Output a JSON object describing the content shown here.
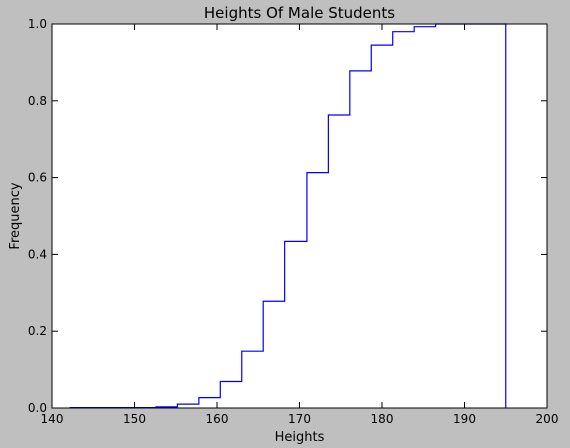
{
  "chart_data": {
    "type": "step",
    "title": "Heights Of Male Students",
    "xlabel": "Heights",
    "ylabel": "Frequency",
    "xlim": [
      140,
      200
    ],
    "ylim": [
      0,
      1.0
    ],
    "grid": false,
    "x_ticks": [
      140,
      150,
      160,
      170,
      180,
      190,
      200
    ],
    "y_ticks": [
      0.0,
      0.2,
      0.4,
      0.6,
      0.8,
      1.0
    ],
    "x_tick_labels": [
      "140",
      "150",
      "160",
      "170",
      "180",
      "190",
      "200"
    ],
    "y_tick_labels": [
      "0.0",
      "0.2",
      "0.4",
      "0.6",
      "0.8",
      "1.0"
    ],
    "line_color": "#0000ff",
    "series": [
      {
        "points": [
          [
            142.2,
            0.0
          ],
          [
            142.2,
            0.001
          ],
          [
            152.6,
            0.001
          ],
          [
            152.6,
            0.003
          ],
          [
            155.2,
            0.003
          ],
          [
            155.2,
            0.01
          ],
          [
            157.8,
            0.01
          ],
          [
            157.8,
            0.027
          ],
          [
            160.4,
            0.027
          ],
          [
            160.4,
            0.069
          ],
          [
            163.0,
            0.069
          ],
          [
            163.0,
            0.148
          ],
          [
            165.6,
            0.148
          ],
          [
            165.6,
            0.278
          ],
          [
            168.2,
            0.278
          ],
          [
            168.2,
            0.434
          ],
          [
            170.9,
            0.434
          ],
          [
            170.9,
            0.613
          ],
          [
            173.5,
            0.613
          ],
          [
            173.5,
            0.763
          ],
          [
            176.1,
            0.763
          ],
          [
            176.1,
            0.878
          ],
          [
            178.7,
            0.878
          ],
          [
            178.7,
            0.945
          ],
          [
            181.3,
            0.945
          ],
          [
            181.3,
            0.98
          ],
          [
            183.9,
            0.98
          ],
          [
            183.9,
            0.993
          ],
          [
            186.5,
            0.993
          ],
          [
            186.5,
            1.0
          ],
          [
            195.0,
            1.0
          ],
          [
            195.0,
            0.0
          ]
        ]
      }
    ]
  }
}
